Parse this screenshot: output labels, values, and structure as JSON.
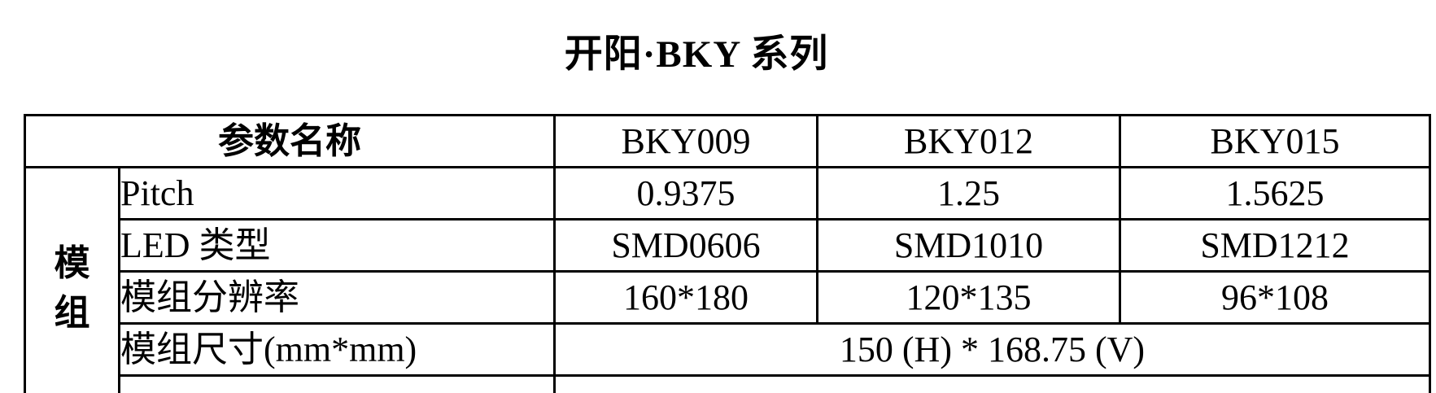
{
  "title": "开阳·BKY 系列",
  "colors": {
    "text": "#000000",
    "background": "#ffffff",
    "border": "#000000"
  },
  "table": {
    "header": {
      "param_label": "参数名称",
      "models": [
        "BKY009",
        "BKY012",
        "BKY015"
      ]
    },
    "group_label": "模组",
    "rows": [
      {
        "label": "Pitch",
        "values": [
          "0.9375",
          "1.25",
          "1.5625"
        ]
      },
      {
        "label": "LED 类型",
        "values": [
          "SMD0606",
          "SMD1010",
          "SMD1212"
        ]
      },
      {
        "label": "模组分辨率",
        "values": [
          "160*180",
          "120*135",
          "96*108"
        ]
      },
      {
        "label": "模组尺寸(mm*mm)",
        "merged_value": "150 (H) * 168.75 (V)"
      }
    ]
  }
}
